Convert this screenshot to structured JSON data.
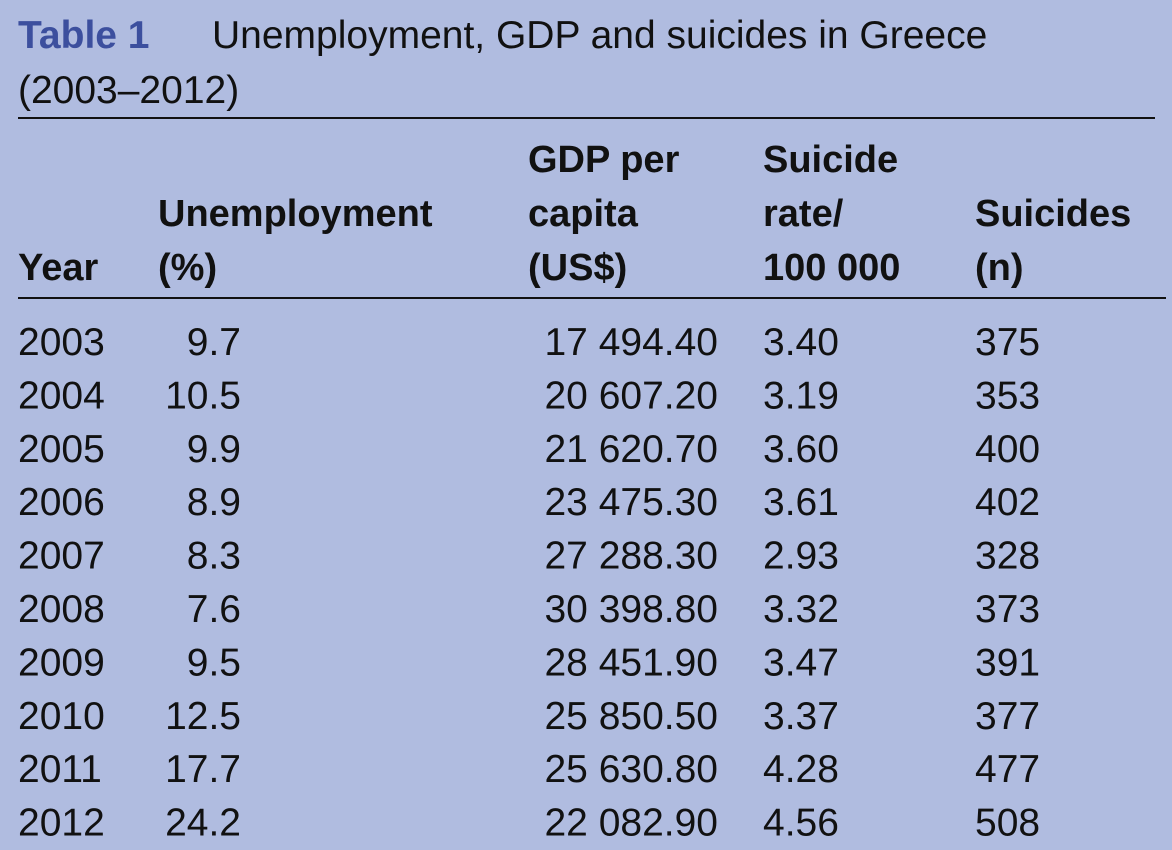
{
  "caption": {
    "label": "Table 1",
    "lines": [
      "Unemployment, GDP and suicides in Greece",
      "(2003–2012)"
    ]
  },
  "table": {
    "columns": [
      [
        "Year"
      ],
      [
        "Unemployment",
        "(%)"
      ],
      [
        "GDP per",
        "capita",
        "(US$)"
      ],
      [
        "Suicide",
        "rate/",
        "100 000"
      ],
      [
        "Suicides",
        "(n)"
      ]
    ],
    "rows": [
      [
        "2003",
        "9.7",
        "17 494.40",
        "3.40",
        "375"
      ],
      [
        "2004",
        "10.5",
        "20 607.20",
        "3.19",
        "353"
      ],
      [
        "2005",
        "9.9",
        "21 620.70",
        "3.60",
        "400"
      ],
      [
        "2006",
        "8.9",
        "23 475.30",
        "3.61",
        "402"
      ],
      [
        "2007",
        "8.3",
        "27 288.30",
        "2.93",
        "328"
      ],
      [
        "2008",
        "7.6",
        "30 398.80",
        "3.32",
        "373"
      ],
      [
        "2009",
        "9.5",
        "28 451.90",
        "3.47",
        "391"
      ],
      [
        "2010",
        "12.5",
        "25 850.50",
        "3.37",
        "377"
      ],
      [
        "2011",
        "17.7",
        "25 630.80",
        "4.28",
        "477"
      ],
      [
        "2012",
        "24.2",
        "22 082.90",
        "4.56",
        "508"
      ]
    ]
  }
}
